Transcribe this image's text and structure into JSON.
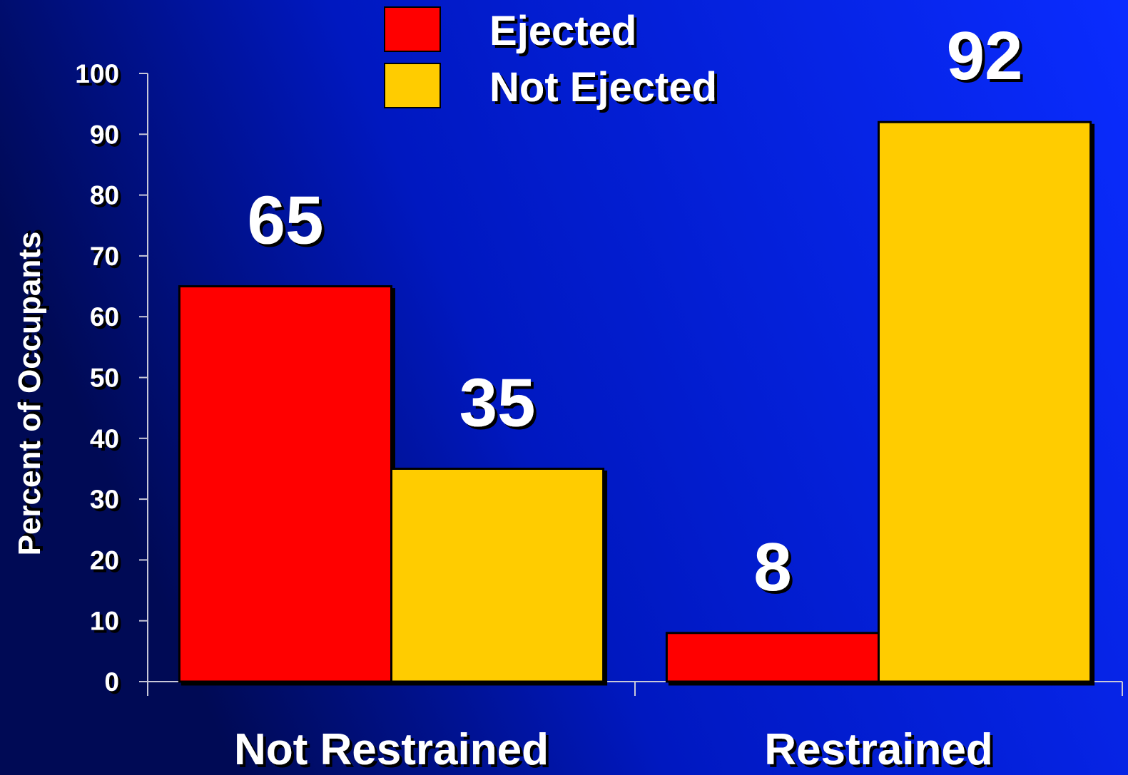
{
  "chart_data": {
    "type": "bar",
    "y_label": "Percent of Occupants",
    "categories": [
      "Not Restrained",
      "Restrained"
    ],
    "series": [
      {
        "name": "Ejected",
        "color": "#ff0000",
        "values": [
          65,
          8
        ]
      },
      {
        "name": "Not Ejected",
        "color": "#ffcc00",
        "values": [
          35,
          92
        ]
      }
    ],
    "ylim": [
      0,
      100
    ],
    "yticks": [
      0,
      10,
      20,
      30,
      40,
      50,
      60,
      70,
      80,
      90,
      100
    ],
    "grid": false,
    "legend": "top"
  }
}
